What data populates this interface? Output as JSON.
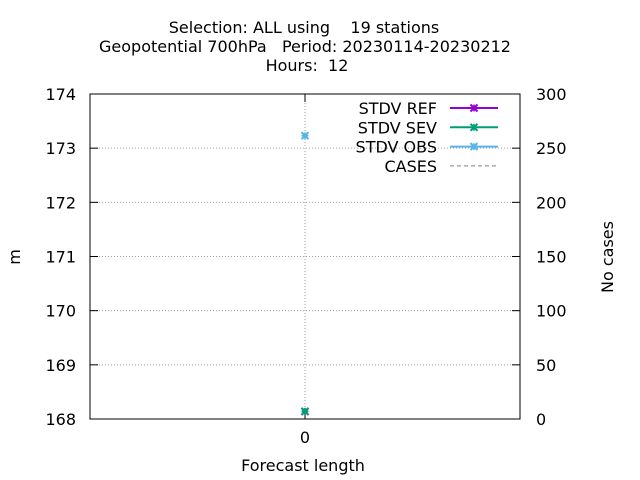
{
  "chart_data": {
    "type": "line",
    "title_lines": [
      "Selection: ALL using    19 stations",
      "Geopotential 700hPa   Period: 20230114-20230212",
      "Hours:  12"
    ],
    "xlabel": "Forecast length",
    "ylabel": "m",
    "y2label": "No cases",
    "x_ticks": [
      0
    ],
    "xlim": [
      -1,
      1
    ],
    "ylim": [
      168,
      174
    ],
    "y_ticks": [
      168,
      169,
      170,
      171,
      172,
      173,
      174
    ],
    "y2lim": [
      0,
      300
    ],
    "y2_ticks": [
      0,
      50,
      100,
      150,
      200,
      250,
      300
    ],
    "grid": true,
    "legend_position": "top-right",
    "series": [
      {
        "name": "STDV REF",
        "color": "#9400d3",
        "axis": "y",
        "x": [
          0
        ],
        "values": [
          168.14
        ]
      },
      {
        "name": "STDV SEV",
        "color": "#009e73",
        "axis": "y",
        "x": [
          0
        ],
        "values": [
          168.14
        ]
      },
      {
        "name": "STDV OBS",
        "color": "#56b4e9",
        "axis": "y",
        "x": [
          0
        ],
        "values": [
          173.23
        ]
      },
      {
        "name": "CASES",
        "color": "#808080",
        "axis": "y2",
        "dashed": true,
        "x": [],
        "values": []
      }
    ]
  }
}
